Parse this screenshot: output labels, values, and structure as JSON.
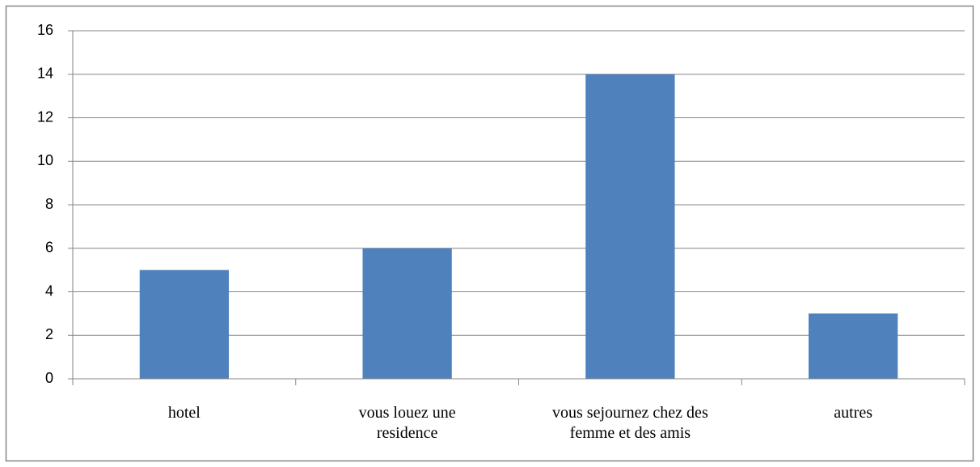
{
  "chart_data": {
    "type": "bar",
    "categories": [
      "hotel",
      "vous louez une residence",
      "vous sejournez chez des femme et des amis",
      "autres"
    ],
    "values": [
      5,
      6,
      14,
      3
    ],
    "color": "#4f81bd",
    "ylim": [
      0,
      16
    ],
    "yticks": [
      0,
      2,
      4,
      6,
      8,
      10,
      12,
      14,
      16
    ],
    "grid": true
  }
}
